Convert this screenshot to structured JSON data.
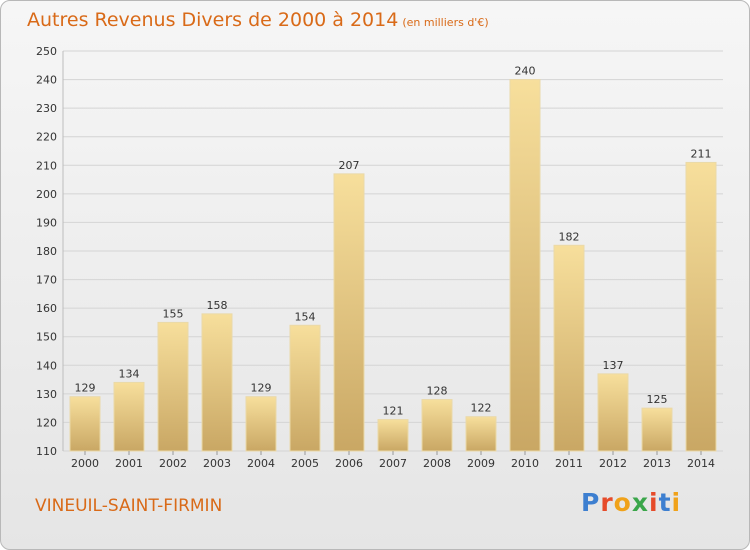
{
  "header": {
    "title": "Autres Revenus Divers de 2000 à 2014",
    "unit": "(en milliers d'€)"
  },
  "location": "VINEUIL-SAINT-FIRMIN",
  "brand": {
    "letters": [
      "P",
      "r",
      "o",
      "x",
      "i",
      "t",
      "i"
    ],
    "colors": [
      "#3d7fd0",
      "#e64b2a",
      "#f0a21a",
      "#3aa64a",
      "#e64b2a",
      "#3d7fd0",
      "#f0a21a"
    ]
  },
  "colors": {
    "bar_light": "#f7df9c",
    "bar_dark": "#c9a764",
    "grid": "#d4d4d4",
    "axis_text": "#333333",
    "accent": "#d96a18"
  },
  "chart_data": {
    "type": "bar",
    "categories": [
      "2000",
      "2001",
      "2002",
      "2003",
      "2004",
      "2005",
      "2006",
      "2007",
      "2008",
      "2009",
      "2010",
      "2011",
      "2012",
      "2013",
      "2014"
    ],
    "values": [
      129,
      134,
      155,
      158,
      129,
      154,
      207,
      121,
      128,
      122,
      240,
      182,
      137,
      125,
      211
    ],
    "title": "Autres Revenus Divers de 2000 à 2014",
    "xlabel": "",
    "ylabel": "",
    "ylim": [
      110,
      250
    ],
    "yticks": [
      110,
      120,
      130,
      140,
      150,
      160,
      170,
      180,
      190,
      200,
      210,
      220,
      230,
      240,
      250
    ],
    "grid": true,
    "data_labels": true
  }
}
